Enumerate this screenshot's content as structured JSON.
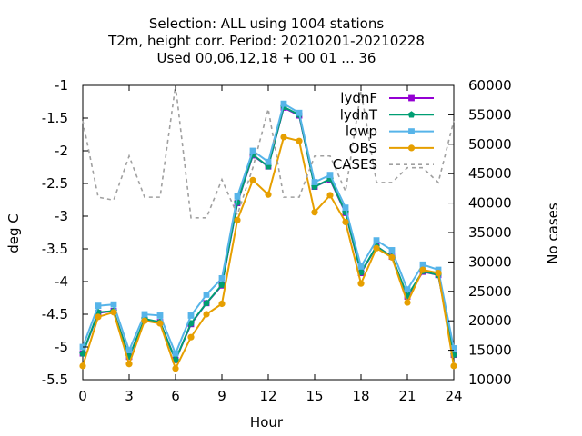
{
  "chart_data": {
    "type": "line",
    "title_lines": [
      "Selection: ALL using  1004 stations",
      "T2m, height corr.   Period: 20210201-20210228",
      "Used  00,06,12,18 + 00 01 ... 36"
    ],
    "xlabel": "Hour",
    "ylabel": "deg C",
    "y2label": "No cases",
    "xlim": [
      0,
      24
    ],
    "ylim": [
      -5.5,
      -1
    ],
    "y2lim": [
      10000,
      60000
    ],
    "xticks": [
      "0",
      "3",
      "6",
      "9",
      "12",
      "15",
      "18",
      "21",
      "24"
    ],
    "yticks": [
      "-1",
      "-1.5",
      "-2",
      "-2.5",
      "-3",
      "-3.5",
      "-4",
      "-4.5",
      "-5",
      "-5.5"
    ],
    "y2ticks": [
      "60000",
      "55000",
      "50000",
      "45000",
      "40000",
      "35000",
      "30000",
      "25000",
      "20000",
      "15000",
      "10000"
    ],
    "legend_position": "top-right",
    "x": [
      0,
      1,
      2,
      3,
      4,
      5,
      6,
      7,
      8,
      9,
      10,
      11,
      12,
      13,
      14,
      15,
      16,
      17,
      18,
      19,
      20,
      21,
      22,
      23,
      24
    ],
    "series": [
      {
        "name": "lydnF",
        "color": "#9400d3",
        "marker": "square",
        "values": [
          -5.1,
          -4.48,
          -4.45,
          -5.15,
          -4.58,
          -4.62,
          -5.2,
          -4.65,
          -4.33,
          -4.06,
          -2.8,
          -2.07,
          -2.24,
          -1.34,
          -1.46,
          -2.55,
          -2.44,
          -2.95,
          -3.87,
          -3.46,
          -3.62,
          -4.23,
          -3.85,
          -3.9,
          -5.12
        ]
      },
      {
        "name": "lydnT",
        "color": "#009e73",
        "marker": "pentagon",
        "values": [
          -5.1,
          -4.47,
          -4.45,
          -5.15,
          -4.57,
          -4.62,
          -5.2,
          -4.64,
          -4.33,
          -4.05,
          -2.79,
          -2.06,
          -2.24,
          -1.33,
          -1.45,
          -2.55,
          -2.43,
          -2.94,
          -3.86,
          -3.46,
          -3.62,
          -4.22,
          -3.84,
          -3.9,
          -5.12
        ]
      },
      {
        "name": "lowp",
        "color": "#56b4e9",
        "marker": "square",
        "values": [
          -5.0,
          -4.37,
          -4.35,
          -5.05,
          -4.5,
          -4.52,
          -5.1,
          -4.52,
          -4.2,
          -3.95,
          -2.7,
          -2.0,
          -2.17,
          -1.28,
          -1.42,
          -2.48,
          -2.37,
          -2.87,
          -3.77,
          -3.37,
          -3.52,
          -4.12,
          -3.74,
          -3.82,
          -5.02
        ]
      },
      {
        "name": "OBS",
        "color": "#e69f00",
        "marker": "circle",
        "values": [
          -5.29,
          -4.54,
          -4.47,
          -5.26,
          -4.6,
          -4.64,
          -5.33,
          -4.85,
          -4.5,
          -4.34,
          -3.06,
          -2.45,
          -2.67,
          -1.79,
          -1.85,
          -2.94,
          -2.68,
          -3.09,
          -4.03,
          -3.49,
          -3.63,
          -4.32,
          -3.82,
          -3.87,
          -5.29
        ]
      },
      {
        "name": "CASES",
        "color": "#a0a0a0",
        "dashed": true,
        "axis": "y2",
        "values": [
          54000,
          41000,
          40500,
          48000,
          41000,
          41000,
          60000,
          37500,
          37500,
          44000,
          38000,
          46000,
          56000,
          41000,
          41000,
          48000,
          48000,
          42000,
          59000,
          43500,
          43500,
          46000,
          46000,
          43500,
          54000
        ]
      }
    ]
  }
}
